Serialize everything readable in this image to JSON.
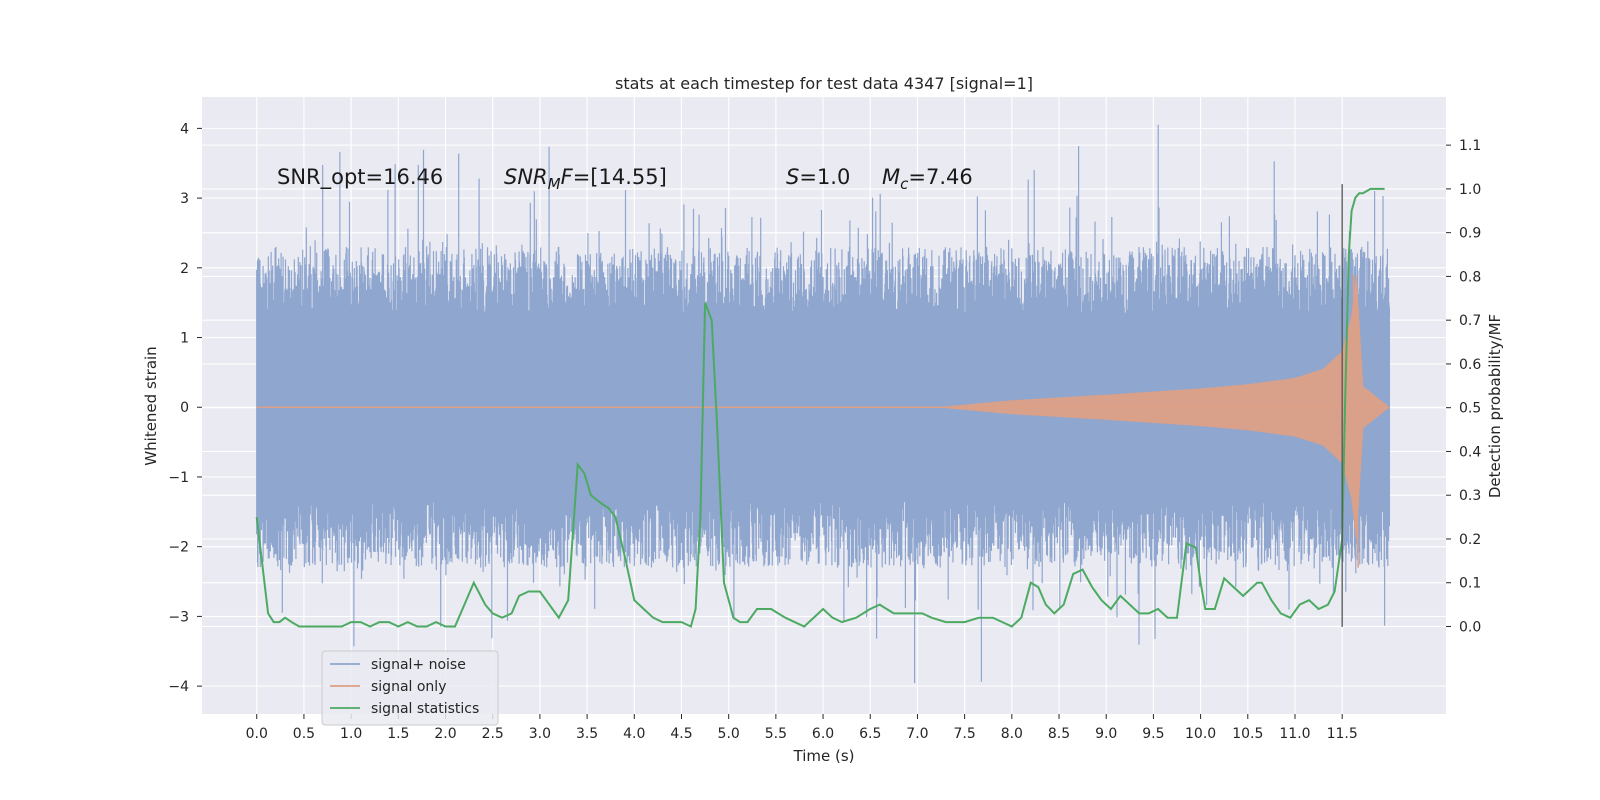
{
  "chart_data": {
    "type": "line",
    "title": "stats at each timestep for test data 4347 [signal=1]",
    "xlabel": "Time (s)",
    "ylabel": "Whitened strain",
    "ylabel_right": "Detection probability/MF",
    "xlim": [
      -0.58,
      12.6
    ],
    "ylim": [
      -4.4,
      4.45
    ],
    "ylim_right": [
      -0.2,
      1.21
    ],
    "x_ticks": [
      0.0,
      0.5,
      1.0,
      1.5,
      2.0,
      2.5,
      3.0,
      3.5,
      4.0,
      4.5,
      5.0,
      5.5,
      6.0,
      6.5,
      7.0,
      7.5,
      8.0,
      8.5,
      9.0,
      9.5,
      10.0,
      10.5,
      11.0,
      11.5
    ],
    "x_tick_labels": [
      "0.0",
      "0.5",
      "1.0",
      "1.5",
      "2.0",
      "2.5",
      "3.0",
      "3.5",
      "4.0",
      "4.5",
      "5.0",
      "5.5",
      "6.0",
      "6.5",
      "7.0",
      "7.5",
      "8.0",
      "8.5",
      "9.0",
      "9.5",
      "10.0",
      "10.5",
      "11.0",
      "11.5"
    ],
    "y_ticks": [
      -4,
      -3,
      -2,
      -1,
      0,
      1,
      2,
      3,
      4
    ],
    "y_tick_labels": [
      "−4",
      "−3",
      "−2",
      "−1",
      "0",
      "1",
      "2",
      "3",
      "4"
    ],
    "y_right_ticks": [
      0.0,
      0.1,
      0.2,
      0.3,
      0.4,
      0.5,
      0.6,
      0.7,
      0.8,
      0.9,
      1.0,
      1.1
    ],
    "y_right_tick_labels": [
      "0.0",
      "0.1",
      "0.2",
      "0.3",
      "0.4",
      "0.5",
      "0.6",
      "0.7",
      "0.8",
      "0.9",
      "1.0",
      "1.1"
    ],
    "grid": true,
    "legend_position": "lower-left",
    "series": [
      {
        "name": "signal+ noise",
        "kind": "noise-band",
        "color": "#8fa6cf",
        "t_range": [
          0.0,
          12.0
        ],
        "core_band": [
          -1.35,
          1.35
        ],
        "typical_max": 2.3,
        "peak_max": 4.1,
        "peak_min": -4.0
      },
      {
        "name": "signal only",
        "kind": "chirp",
        "color": "#dd9f86",
        "onset_t": 7.2,
        "merger_t": 11.62,
        "end_t": 12.0,
        "envelope": {
          "x": [
            7.2,
            8.0,
            9.0,
            10.0,
            10.5,
            11.0,
            11.3,
            11.5,
            11.6,
            11.65,
            11.72,
            12.0
          ],
          "y": [
            0.0,
            0.1,
            0.18,
            0.27,
            0.33,
            0.42,
            0.55,
            0.8,
            1.3,
            1.9,
            0.3,
            0.0
          ]
        }
      },
      {
        "name": "signal statistics",
        "kind": "line",
        "axis": "right",
        "color": "#4caa62",
        "x": [
          0.0,
          0.06,
          0.12,
          0.18,
          0.24,
          0.3,
          0.37,
          0.45,
          0.55,
          0.65,
          0.8,
          0.9,
          1.0,
          1.1,
          1.2,
          1.3,
          1.4,
          1.5,
          1.6,
          1.7,
          1.8,
          1.9,
          2.0,
          2.1,
          2.2,
          2.3,
          2.42,
          2.5,
          2.6,
          2.7,
          2.78,
          2.88,
          3.0,
          3.1,
          3.2,
          3.3,
          3.4,
          3.47,
          3.54,
          3.6,
          3.66,
          3.73,
          3.8,
          3.9,
          4.0,
          4.1,
          4.2,
          4.3,
          4.4,
          4.5,
          4.6,
          4.65,
          4.7,
          4.75,
          4.82,
          4.88,
          4.95,
          5.05,
          5.12,
          5.2,
          5.3,
          5.45,
          5.6,
          5.8,
          6.0,
          6.1,
          6.2,
          6.35,
          6.5,
          6.6,
          6.75,
          6.9,
          7.05,
          7.15,
          7.3,
          7.5,
          7.65,
          7.8,
          7.9,
          8.0,
          8.1,
          8.2,
          8.28,
          8.36,
          8.45,
          8.55,
          8.65,
          8.75,
          8.85,
          8.95,
          9.05,
          9.15,
          9.25,
          9.35,
          9.45,
          9.55,
          9.65,
          9.75,
          9.85,
          9.95,
          10.0,
          10.05,
          10.15,
          10.25,
          10.35,
          10.45,
          10.55,
          10.6,
          10.65,
          10.75,
          10.85,
          10.95,
          11.05,
          11.15,
          11.25,
          11.35,
          11.42,
          11.5,
          11.53,
          11.57,
          11.6,
          11.64,
          11.68,
          11.72,
          11.8,
          11.9,
          11.95
        ],
        "values": [
          0.25,
          0.14,
          0.03,
          0.01,
          0.01,
          0.02,
          0.01,
          0.0,
          0.0,
          0.0,
          0.0,
          0.0,
          0.01,
          0.01,
          0.0,
          0.01,
          0.01,
          0.0,
          0.01,
          0.0,
          0.0,
          0.01,
          0.0,
          0.0,
          0.05,
          0.1,
          0.05,
          0.03,
          0.02,
          0.03,
          0.07,
          0.08,
          0.08,
          0.05,
          0.02,
          0.06,
          0.37,
          0.35,
          0.3,
          0.29,
          0.28,
          0.27,
          0.25,
          0.16,
          0.06,
          0.04,
          0.02,
          0.01,
          0.01,
          0.01,
          0.0,
          0.04,
          0.25,
          0.74,
          0.7,
          0.45,
          0.1,
          0.02,
          0.01,
          0.01,
          0.04,
          0.04,
          0.02,
          0.0,
          0.04,
          0.02,
          0.01,
          0.02,
          0.04,
          0.05,
          0.03,
          0.03,
          0.03,
          0.02,
          0.01,
          0.01,
          0.02,
          0.02,
          0.01,
          0.0,
          0.02,
          0.1,
          0.09,
          0.05,
          0.03,
          0.05,
          0.12,
          0.13,
          0.09,
          0.06,
          0.04,
          0.07,
          0.05,
          0.03,
          0.03,
          0.04,
          0.02,
          0.02,
          0.19,
          0.18,
          0.1,
          0.04,
          0.04,
          0.11,
          0.09,
          0.07,
          0.09,
          0.1,
          0.1,
          0.06,
          0.03,
          0.02,
          0.05,
          0.06,
          0.04,
          0.05,
          0.08,
          0.2,
          0.5,
          0.85,
          0.95,
          0.98,
          0.99,
          0.99,
          1.0,
          1.0,
          1.0
        ]
      }
    ],
    "annotations": [
      {
        "plain": "SNR_opt=16.46"
      },
      {
        "prefix": "SNR",
        "sub": "M",
        "mid": "F",
        "value": "=[14.55]"
      },
      {
        "italic": "S",
        "value": "=1.0"
      },
      {
        "italic": "M",
        "sub": "c",
        "value": "=7.46"
      }
    ]
  }
}
